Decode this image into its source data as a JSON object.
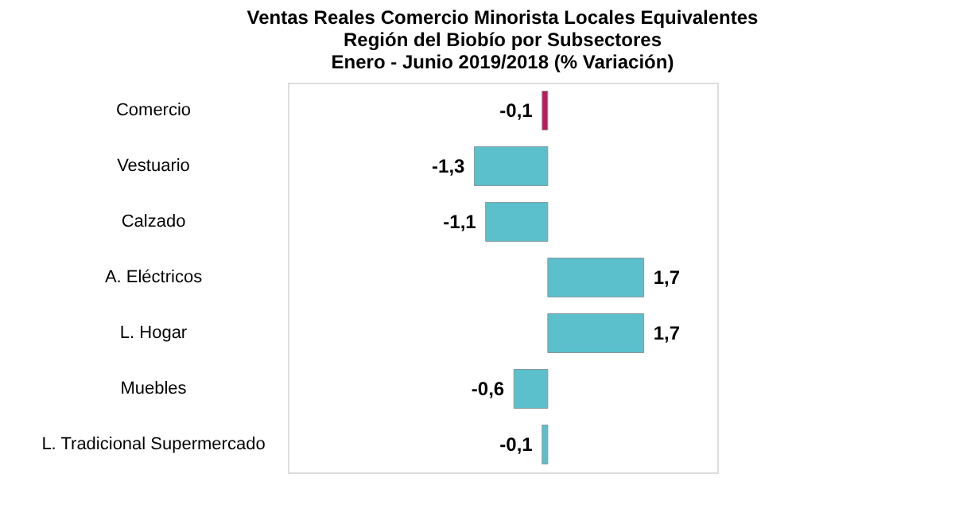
{
  "chart_data": {
    "type": "bar",
    "orientation": "horizontal",
    "title": "Ventas Reales Comercio Minorista Locales Equivalentes\nRegión del Biobío por Subsectores\nEnero - Junio  2019/2018  (% Variación)",
    "categories": [
      "Comercio",
      "Vestuario",
      "Calzado",
      "A. Eléctricos",
      "L. Hogar",
      "Muebles",
      "L. Tradicional Supermercado"
    ],
    "values": [
      -0.1,
      -1.3,
      -1.1,
      1.7,
      1.7,
      -0.6,
      -0.1
    ],
    "colors": [
      "#c2185b",
      "#5bbfcc",
      "#5bbfcc",
      "#5bbfcc",
      "#5bbfcc",
      "#5bbfcc",
      "#5bbfcc"
    ],
    "value_labels": [
      "-0,1",
      "-1,3",
      "-1,1",
      "1,7",
      "1,7",
      "-0,6",
      "-0,1"
    ],
    "xlim": [
      -4.6,
      3.0
    ],
    "tick_labels": "y"
  }
}
